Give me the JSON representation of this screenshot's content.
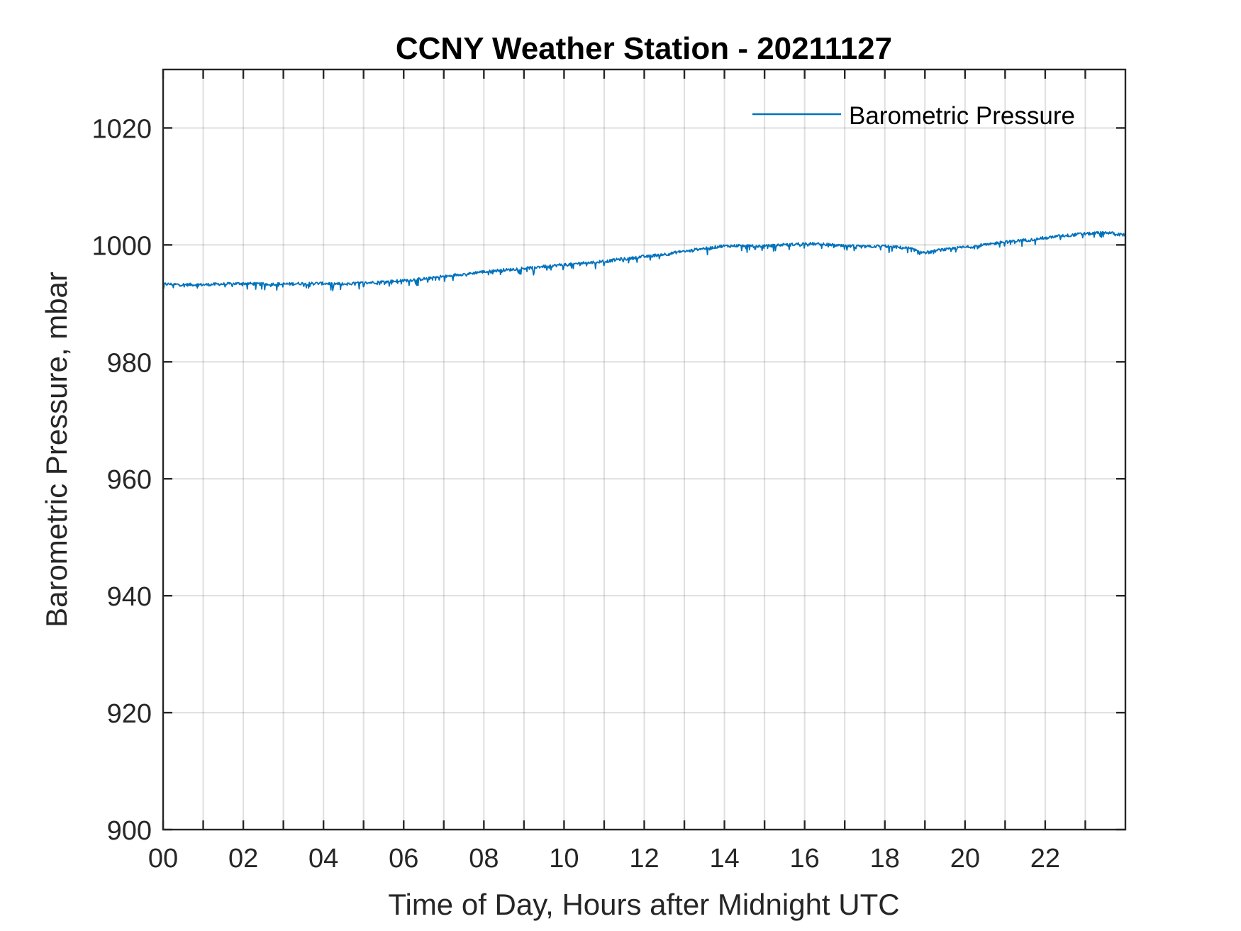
{
  "chart_data": {
    "type": "line",
    "title": "CCNY Weather Station - 20211127",
    "xlabel": "Time of Day, Hours after Midnight UTC",
    "ylabel": "Barometric Pressure, mbar",
    "xlim": [
      0,
      24
    ],
    "ylim": [
      900,
      1030
    ],
    "x_major_ticks": [
      0,
      2,
      4,
      6,
      8,
      10,
      12,
      14,
      16,
      18,
      20,
      22
    ],
    "x_tick_labels": [
      "00",
      "02",
      "04",
      "06",
      "08",
      "10",
      "12",
      "14",
      "16",
      "18",
      "20",
      "22"
    ],
    "x_grid": [
      0,
      1,
      2,
      3,
      4,
      5,
      6,
      7,
      8,
      9,
      10,
      11,
      12,
      13,
      14,
      15,
      16,
      17,
      18,
      19,
      20,
      21,
      22,
      23
    ],
    "y_ticks": [
      900,
      920,
      940,
      960,
      980,
      1000,
      1020
    ],
    "y_tick_labels": [
      "900",
      "920",
      "940",
      "960",
      "980",
      "1000",
      "1020"
    ],
    "grid": true,
    "legend_position": "top-right",
    "series": [
      {
        "name": "Barometric Pressure",
        "color": "#0072bd",
        "x": [
          0,
          0.5,
          1,
          1.5,
          2,
          2.5,
          3,
          3.5,
          4,
          4.5,
          5,
          5.5,
          6,
          6.5,
          7,
          7.5,
          8,
          8.5,
          9,
          9.5,
          10,
          10.5,
          11,
          11.5,
          12,
          12.5,
          13,
          13.5,
          14,
          14.5,
          15,
          15.5,
          16,
          16.5,
          17,
          17.5,
          18,
          18.5,
          19,
          19.5,
          20,
          20.5,
          21,
          21.5,
          22,
          22.5,
          23,
          23.5,
          24
        ],
        "values": [
          993.3,
          993.2,
          993.2,
          993.3,
          993.4,
          993.3,
          993.3,
          993.4,
          993.4,
          993.3,
          993.5,
          993.7,
          993.9,
          994.2,
          994.6,
          995.0,
          995.4,
          995.7,
          996.0,
          996.3,
          996.6,
          996.9,
          997.2,
          997.6,
          998.0,
          998.4,
          998.9,
          999.4,
          999.8,
          999.9,
          999.8,
          1000.0,
          1000.2,
          1000.1,
          999.8,
          999.7,
          999.8,
          999.5,
          998.7,
          999.2,
          999.6,
          1000.0,
          1000.5,
          1000.8,
          1001.2,
          1001.6,
          1001.9,
          1002.1,
          1001.7
        ]
      }
    ]
  }
}
